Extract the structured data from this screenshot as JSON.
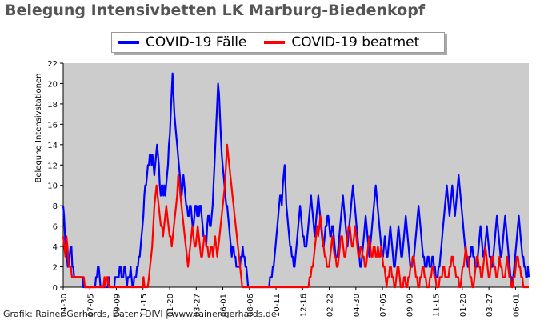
{
  "title": "Belegung Intensivbetten LK Marburg-Biedenkopf",
  "credit": "Grafik: Rainer Gerhards, Daten: DIVI | www.rainer-gerhards.de",
  "chart_data": {
    "type": "line",
    "title": "Belegung Intensivbetten LK Marburg-Biedenkopf",
    "xlabel": "",
    "ylabel": "Belegung Intensivstationen",
    "ylim": [
      0,
      22
    ],
    "yticks": [
      0,
      2,
      4,
      6,
      8,
      10,
      12,
      14,
      16,
      18,
      20,
      22
    ],
    "grid": false,
    "legend_position": "top-center",
    "background_color": "#cccccc",
    "xtick_labels": [
      "04-30",
      "07-05",
      "09-09",
      "11-15",
      "01-20",
      "03-27",
      "06-01",
      "08-06",
      "10-11",
      "12-16",
      "02-22",
      "04-30",
      "07-05",
      "09-09",
      "11-15",
      "01-20",
      "03-27",
      "06-01"
    ],
    "series": [
      {
        "name": "COVID-19 Fälle",
        "color": "#0000ff",
        "values": [
          8,
          7,
          5,
          4,
          3,
          2,
          2,
          3,
          4,
          4,
          2,
          2,
          1,
          1,
          1,
          1,
          1,
          1,
          1,
          1,
          1,
          1,
          0,
          0,
          0,
          0,
          0,
          0,
          0,
          0,
          0,
          0,
          0,
          0,
          0,
          0,
          1,
          1,
          2,
          2,
          1,
          0,
          0,
          0,
          0,
          0,
          0,
          0,
          0,
          0,
          1,
          0,
          0,
          0,
          0,
          0,
          0,
          1,
          1,
          1,
          1,
          1,
          2,
          2,
          1,
          1,
          1,
          2,
          2,
          1,
          0,
          1,
          1,
          1,
          2,
          1,
          0,
          0,
          1,
          1,
          1,
          2,
          2,
          3,
          3,
          4,
          5,
          6,
          7,
          9,
          10,
          10,
          11,
          12,
          12,
          13,
          13,
          12,
          13,
          12,
          11,
          12,
          13,
          14,
          13,
          12,
          10,
          9,
          10,
          10,
          9,
          10,
          9,
          10,
          11,
          12,
          14,
          15,
          17,
          19,
          21,
          19,
          17,
          16,
          15,
          14,
          13,
          12,
          11,
          10,
          9,
          10,
          11,
          10,
          9,
          8,
          8,
          7,
          7,
          8,
          8,
          7,
          6,
          6,
          7,
          8,
          8,
          7,
          8,
          7,
          8,
          8,
          7,
          6,
          5,
          5,
          5,
          4,
          6,
          7,
          7,
          6,
          6,
          7,
          8,
          10,
          12,
          14,
          16,
          18,
          20,
          19,
          17,
          15,
          13,
          12,
          11,
          10,
          9,
          8,
          8,
          7,
          6,
          5,
          4,
          3,
          4,
          4,
          3,
          3,
          2,
          2,
          2,
          2,
          2,
          3,
          3,
          4,
          3,
          3,
          2,
          2,
          1,
          0,
          0,
          0,
          0,
          0,
          0,
          0,
          0,
          0,
          0,
          0,
          0,
          0,
          0,
          0,
          0,
          0,
          0,
          0,
          0,
          0,
          0,
          0,
          0,
          1,
          1,
          1,
          2,
          2,
          3,
          4,
          5,
          6,
          7,
          8,
          9,
          9,
          8,
          10,
          11,
          12,
          10,
          8,
          7,
          6,
          5,
          4,
          4,
          3,
          3,
          2,
          2,
          3,
          4,
          5,
          6,
          7,
          8,
          7,
          6,
          5,
          5,
          4,
          4,
          4,
          5,
          6,
          7,
          8,
          9,
          8,
          7,
          6,
          5,
          6,
          7,
          8,
          9,
          8,
          7,
          6,
          5,
          4,
          4,
          5,
          6,
          6,
          7,
          7,
          6,
          5,
          5,
          6,
          6,
          5,
          4,
          3,
          3,
          3,
          4,
          5,
          6,
          7,
          8,
          9,
          8,
          7,
          6,
          5,
          4,
          5,
          6,
          7,
          8,
          9,
          10,
          9,
          8,
          7,
          6,
          5,
          4,
          3,
          2,
          2,
          3,
          4,
          5,
          6,
          7,
          6,
          5,
          4,
          3,
          4,
          5,
          6,
          7,
          8,
          9,
          10,
          9,
          8,
          7,
          6,
          5,
          4,
          3,
          3,
          4,
          5,
          4,
          3,
          3,
          4,
          5,
          6,
          5,
          4,
          3,
          2,
          2,
          3,
          4,
          5,
          6,
          5,
          4,
          3,
          3,
          4,
          5,
          6,
          7,
          6,
          5,
          4,
          3,
          2,
          2,
          2,
          3,
          3,
          4,
          5,
          6,
          7,
          8,
          7,
          6,
          5,
          4,
          3,
          3,
          2,
          2,
          2,
          3,
          3,
          2,
          2,
          2,
          3,
          3,
          2,
          2,
          1,
          1,
          1,
          2,
          2,
          3,
          4,
          5,
          6,
          7,
          8,
          9,
          10,
          9,
          8,
          7,
          8,
          9,
          10,
          9,
          8,
          7,
          8,
          9,
          10,
          11,
          10,
          9,
          8,
          7,
          6,
          5,
          4,
          3,
          3,
          2,
          2,
          3,
          3,
          4,
          4,
          3,
          3,
          2,
          2,
          2,
          3,
          4,
          5,
          6,
          5,
          4,
          3,
          3,
          4,
          5,
          6,
          5,
          4,
          3,
          3,
          2,
          2,
          3,
          4,
          5,
          6,
          7,
          6,
          5,
          4,
          3,
          3,
          4,
          5,
          6,
          7,
          6,
          5,
          4,
          3,
          2,
          1,
          1,
          0,
          1,
          2,
          3,
          4,
          5,
          6,
          7,
          6,
          5,
          4,
          3,
          3,
          2,
          2,
          1,
          1,
          2,
          1
        ]
      },
      {
        "name": "COVID-19 beatmet",
        "color": "#ff0000",
        "values": [
          5,
          4,
          3,
          5,
          4,
          2,
          2,
          2,
          1,
          1,
          1,
          1,
          1,
          1,
          1,
          1,
          1,
          1,
          1,
          1,
          0,
          0,
          0,
          0,
          0,
          0,
          0,
          0,
          0,
          0,
          0,
          0,
          0,
          0,
          0,
          0,
          0,
          0,
          1,
          0,
          1,
          1,
          0,
          0,
          0,
          0,
          0,
          0,
          0,
          0,
          0,
          0,
          0,
          0,
          0,
          0,
          0,
          0,
          0,
          0,
          0,
          0,
          0,
          0,
          0,
          0,
          0,
          0,
          0,
          0,
          0,
          0,
          0,
          0,
          1,
          0,
          0,
          0,
          0,
          1,
          2,
          3,
          4,
          6,
          8,
          9,
          10,
          9,
          8,
          7,
          6,
          6,
          5,
          6,
          7,
          8,
          7,
          6,
          5,
          5,
          4,
          5,
          6,
          7,
          8,
          9,
          11,
          10,
          9,
          8,
          7,
          6,
          5,
          4,
          3,
          2,
          3,
          4,
          5,
          6,
          5,
          4,
          4,
          5,
          6,
          5,
          4,
          3,
          3,
          4,
          5,
          5,
          4,
          4,
          3,
          3,
          4,
          4,
          3,
          4,
          5,
          4,
          3,
          4,
          5,
          6,
          7,
          8,
          9,
          10,
          12,
          14,
          13,
          12,
          11,
          10,
          9,
          8,
          7,
          6,
          5,
          4,
          3,
          2,
          1,
          0,
          0,
          0,
          0,
          0,
          0,
          0,
          0,
          0,
          0,
          0,
          0,
          0,
          0,
          0,
          0,
          0,
          0,
          0,
          0,
          0,
          0,
          0,
          0,
          0,
          0,
          0,
          0,
          0,
          0,
          0,
          0,
          0,
          0,
          0,
          0,
          0,
          0,
          0,
          0,
          0,
          0,
          0,
          0,
          0,
          0,
          0,
          0,
          0,
          0,
          0,
          0,
          0,
          0,
          0,
          0,
          0,
          0,
          0,
          0,
          0,
          0,
          1,
          1,
          2,
          2,
          3,
          4,
          5,
          6,
          5,
          6,
          7,
          6,
          5,
          4,
          3,
          3,
          2,
          2,
          2,
          3,
          4,
          5,
          4,
          3,
          3,
          2,
          2,
          3,
          4,
          5,
          5,
          4,
          3,
          3,
          4,
          5,
          6,
          6,
          5,
          4,
          4,
          5,
          6,
          5,
          4,
          3,
          3,
          4,
          4,
          3,
          3,
          2,
          2,
          3,
          4,
          5,
          4,
          3,
          3,
          4,
          4,
          3,
          3,
          4,
          3,
          3,
          4,
          3,
          2,
          2,
          1,
          0,
          1,
          1,
          2,
          2,
          1,
          1,
          0,
          0,
          1,
          2,
          2,
          1,
          0,
          0,
          0,
          1,
          1,
          0,
          0,
          1,
          1,
          2,
          2,
          3,
          3,
          2,
          1,
          1,
          0,
          0,
          1,
          1,
          2,
          2,
          1,
          1,
          0,
          0,
          0,
          1,
          1,
          2,
          2,
          1,
          1,
          0,
          0,
          0,
          1,
          1,
          1,
          2,
          2,
          1,
          1,
          1,
          1,
          2,
          2,
          3,
          3,
          2,
          2,
          1,
          1,
          1,
          0,
          0,
          1,
          2,
          2,
          3,
          4,
          3,
          3,
          2,
          1,
          1,
          0,
          0,
          1,
          2,
          3,
          3,
          2,
          2,
          1,
          1,
          2,
          3,
          4,
          3,
          2,
          1,
          1,
          2,
          3,
          3,
          2,
          2,
          1,
          1,
          2,
          3,
          2,
          2,
          1,
          1,
          1,
          2,
          3,
          2,
          1,
          1,
          0,
          0,
          1,
          1,
          2,
          3,
          3,
          2,
          2,
          1,
          1,
          0,
          0,
          0,
          0,
          0,
          0
        ]
      }
    ]
  }
}
